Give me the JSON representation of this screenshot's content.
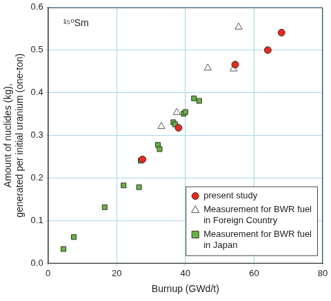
{
  "chart_data": {
    "type": "scatter",
    "annotation": "¹⁵⁰Sm",
    "x_label": "Burnup (GWd/t)",
    "y_label": [
      "Amount of nuclides (kg),",
      "generated per initial uranium (one-ton)"
    ],
    "xlim": [
      0,
      80
    ],
    "xticks": [
      0,
      20,
      40,
      60,
      80
    ],
    "ylim": [
      0,
      0.6
    ],
    "yticks": [
      {
        "value": 0,
        "label": "0.0"
      },
      0.1,
      0.2,
      0.3,
      0.4,
      0.5,
      0.6
    ],
    "grid": true,
    "legend": "lower right",
    "series": [
      {
        "name": "present study",
        "color": "#e8281e",
        "marker": "circle",
        "x": [
          27.5,
          38,
          54.5,
          64,
          68
        ],
        "values": [
          0.244,
          0.318,
          0.466,
          0.5,
          0.541
        ]
      },
      {
        "name": "Measurement for BWR fuel in Foreign Country",
        "color": "#ffffff",
        "marker": "triangle",
        "x": [
          33,
          37.5,
          46.5,
          54,
          55.5
        ],
        "values": [
          0.321,
          0.354,
          0.458,
          0.456,
          0.554
        ]
      },
      {
        "name": "Measurement for BWR fuel in Japan",
        "color": "#6ab43e",
        "marker": "square",
        "x": [
          4.5,
          7.5,
          16.5,
          22,
          26.5,
          27,
          32,
          32.5,
          36.5,
          37,
          39.5,
          40,
          42.5,
          44
        ],
        "values": [
          0.034,
          0.062,
          0.132,
          0.183,
          0.179,
          0.241,
          0.278,
          0.268,
          0.331,
          0.326,
          0.351,
          0.355,
          0.387,
          0.381
        ]
      }
    ]
  }
}
